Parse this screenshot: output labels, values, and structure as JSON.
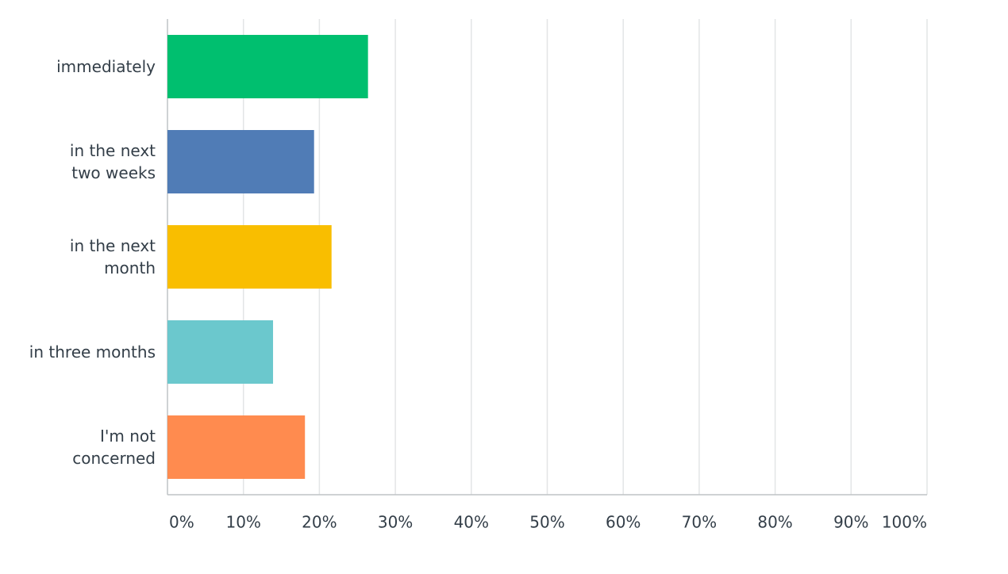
{
  "chart_data": {
    "type": "bar",
    "orientation": "horizontal",
    "categories": [
      "immediately",
      "in the next\ntwo weeks",
      "in the next\nmonth",
      "in three months",
      "I'm not\nconcerned"
    ],
    "values": [
      26.4,
      19.3,
      21.6,
      13.9,
      18.1
    ],
    "colors": [
      "#00bf6f",
      "#507cb6",
      "#f9be00",
      "#6bc8cd",
      "#ff8b4f"
    ],
    "xlim": [
      0,
      100
    ],
    "xticks": [
      {
        "value": 0,
        "label": "0%"
      },
      {
        "value": 10,
        "label": "10%"
      },
      {
        "value": 20,
        "label": "20%"
      },
      {
        "value": 30,
        "label": "30%"
      },
      {
        "value": 40,
        "label": "40%"
      },
      {
        "value": 50,
        "label": "50%"
      },
      {
        "value": 60,
        "label": "60%"
      },
      {
        "value": 70,
        "label": "70%"
      },
      {
        "value": 80,
        "label": "80%"
      },
      {
        "value": 90,
        "label": "90%"
      },
      {
        "value": 100,
        "label": "100%"
      }
    ],
    "grid": true
  }
}
